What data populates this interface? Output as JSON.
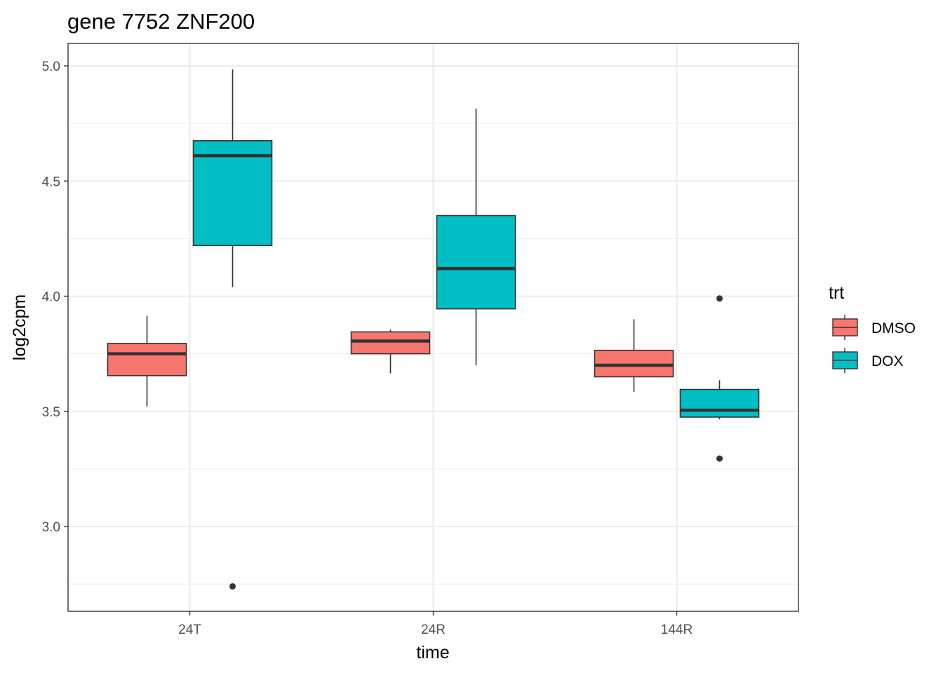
{
  "chart_data": {
    "type": "box",
    "title": "gene 7752 ZNF200",
    "xlabel": "time",
    "ylabel": "log2cpm",
    "categories": [
      "24T",
      "24R",
      "144R"
    ],
    "ylim": [
      2.63,
      5.1
    ],
    "y_ticks": [
      3.0,
      3.5,
      4.0,
      4.5,
      5.0
    ],
    "y_tick_labels": [
      "3.0",
      "3.5",
      "4.0",
      "4.5",
      "5.0"
    ],
    "grid": true,
    "legend": {
      "title": "trt",
      "position": "right"
    },
    "series": [
      {
        "name": "DMSO",
        "color": "#F8766D",
        "boxes": [
          {
            "category": "24T",
            "whisker_low": 3.52,
            "q1": 3.655,
            "median": 3.75,
            "q3": 3.795,
            "whisker_high": 3.915,
            "outliers": []
          },
          {
            "category": "24R",
            "whisker_low": 3.665,
            "q1": 3.75,
            "median": 3.805,
            "q3": 3.845,
            "whisker_high": 3.855,
            "outliers": []
          },
          {
            "category": "144R",
            "whisker_low": 3.585,
            "q1": 3.65,
            "median": 3.7,
            "q3": 3.765,
            "whisker_high": 3.9,
            "outliers": []
          }
        ]
      },
      {
        "name": "DOX",
        "color": "#00BFC4",
        "boxes": [
          {
            "category": "24T",
            "whisker_low": 4.04,
            "q1": 4.22,
            "median": 4.61,
            "q3": 4.675,
            "whisker_high": 4.985,
            "outliers": [
              2.74
            ]
          },
          {
            "category": "24R",
            "whisker_low": 3.7,
            "q1": 3.945,
            "median": 4.12,
            "q3": 4.35,
            "whisker_high": 4.815,
            "outliers": []
          },
          {
            "category": "144R",
            "whisker_low": 3.465,
            "q1": 3.475,
            "median": 3.505,
            "q3": 3.595,
            "whisker_high": 3.635,
            "outliers": [
              3.99,
              3.295
            ]
          }
        ]
      }
    ]
  }
}
